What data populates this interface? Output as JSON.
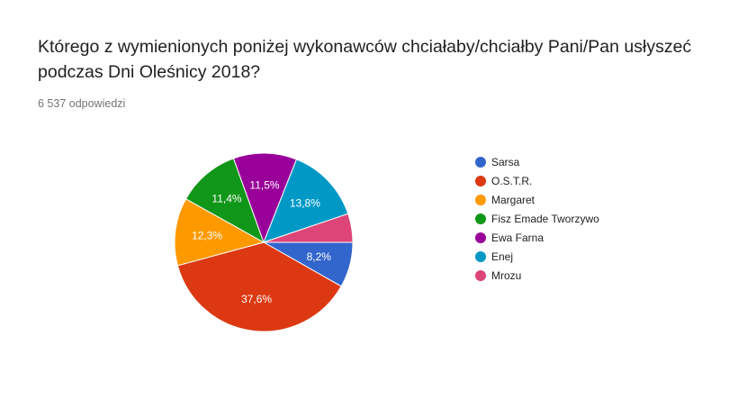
{
  "question": {
    "title": "Którego z wymienionych poniżej wykonawców chciałaby/chciałby Pani/Pan usłyszeć podczas Dni Oleśnicy 2018?",
    "response_count": "6 537 odpowiedzi"
  },
  "chart_data": {
    "type": "pie",
    "title": "",
    "legend_position": "right",
    "slices": [
      {
        "label": "Sarsa",
        "value": 8.2,
        "value_label": "8,2%",
        "color": "#3366cc"
      },
      {
        "label": "O.S.T.R.",
        "value": 37.6,
        "value_label": "37,6%",
        "color": "#dc3912"
      },
      {
        "label": "Margaret",
        "value": 12.3,
        "value_label": "12,3%",
        "color": "#ff9900"
      },
      {
        "label": "Fisz Emade Tworzywo",
        "value": 11.4,
        "value_label": "11,4%",
        "color": "#109618"
      },
      {
        "label": "Ewa Farna",
        "value": 11.5,
        "value_label": "11,5%",
        "color": "#990099"
      },
      {
        "label": "Enej",
        "value": 13.8,
        "value_label": "13,8%",
        "color": "#0099c6"
      },
      {
        "label": "Mrozu",
        "value": 5.2,
        "value_label": "",
        "color": "#dd4477"
      }
    ]
  }
}
